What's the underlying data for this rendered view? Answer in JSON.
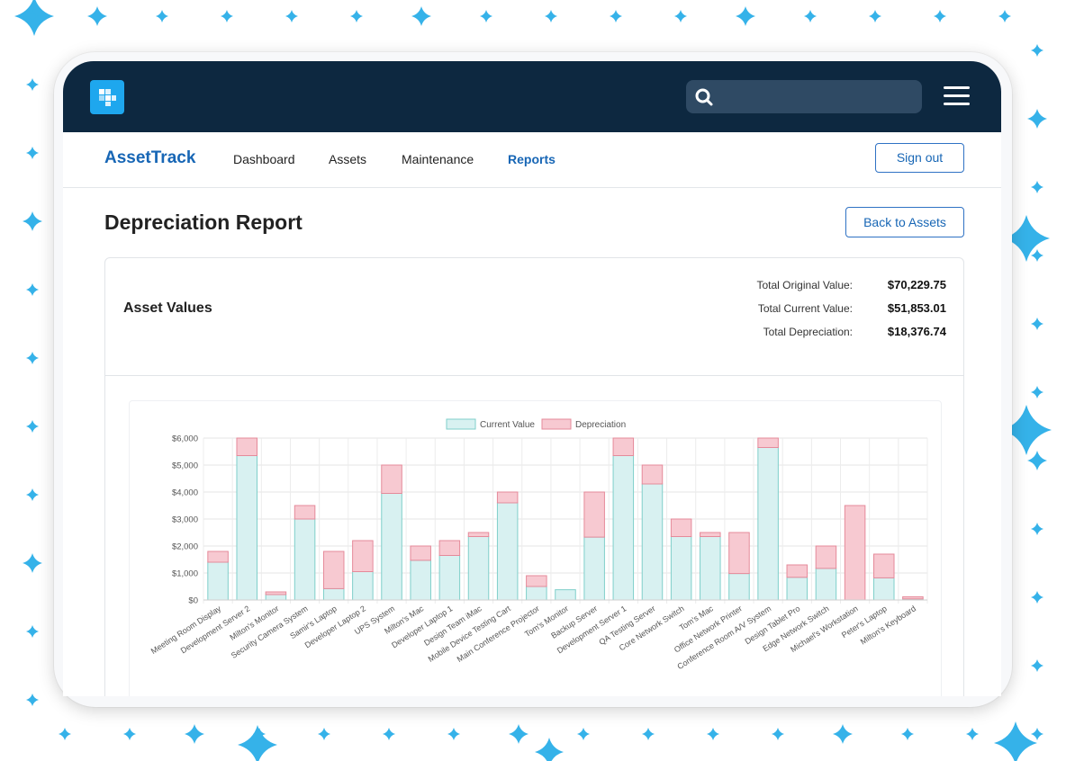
{
  "app": {
    "brand": "AssetTrack",
    "search_placeholder": ""
  },
  "nav": {
    "links": [
      "Dashboard",
      "Assets",
      "Maintenance",
      "Reports"
    ],
    "active": "Reports",
    "sign_out_label": "Sign out"
  },
  "page": {
    "title": "Depreciation Report",
    "back_label": "Back to Assets"
  },
  "card": {
    "title": "Asset Values",
    "summary": {
      "original_label": "Total Original Value:",
      "original_value": "$70,229.75",
      "current_label": "Total Current Value:",
      "current_value": "$51,853.01",
      "depreciation_label": "Total Depreciation:",
      "depreciation_value": "$18,376.74"
    }
  },
  "colors": {
    "topbar": "#0d2840",
    "accent": "#1766b5",
    "logo": "#1ea7ee",
    "current_fill": "#d8f1f1",
    "current_stroke": "#7fcfca",
    "depreciation_fill": "#f7c9d1",
    "depreciation_stroke": "#e58a9a",
    "sparkle": "#35b2e9"
  },
  "chart_data": {
    "type": "bar",
    "stacked": true,
    "title": "",
    "xlabel": "",
    "ylabel": "",
    "ylim": [
      0,
      6000
    ],
    "yticks": [
      "$0",
      "$1,000",
      "$2,000",
      "$3,000",
      "$4,000",
      "$5,000",
      "$6,000"
    ],
    "legend_position": "top-center",
    "categories": [
      "Meeting Room Display",
      "Development Server 2",
      "Milton's Monitor",
      "Security Camera System",
      "Samir's Laptop",
      "Developer Laptop 2",
      "UPS System",
      "Milton's Mac",
      "Developer Laptop 1",
      "Design Team iMac",
      "Mobile Device Testing Cart",
      "Main Conference Projector",
      "Tom's Monitor",
      "Backup Server",
      "Development Server 1",
      "QA Testing Server",
      "Core Network Switch",
      "Tom's Mac",
      "Office Network Printer",
      "Conference Room A/V System",
      "Design Tablet Pro",
      "Edge Network Switch",
      "Michael's Workstation",
      "Peter's Laptop",
      "Milton's Keyboard"
    ],
    "series": [
      {
        "name": "Current Value",
        "values": [
          1400,
          5350,
          200,
          3000,
          420,
          1050,
          3950,
          1470,
          1650,
          2350,
          3600,
          500,
          380,
          2330,
          5350,
          4300,
          2350,
          2350,
          980,
          5650,
          840,
          1170,
          0,
          820,
          40
        ]
      },
      {
        "name": "Depreciation",
        "values": [
          400,
          650,
          100,
          500,
          1380,
          1150,
          1050,
          530,
          550,
          150,
          400,
          400,
          0,
          1670,
          650,
          700,
          650,
          150,
          1520,
          350,
          460,
          830,
          3500,
          880,
          80
        ]
      }
    ]
  }
}
